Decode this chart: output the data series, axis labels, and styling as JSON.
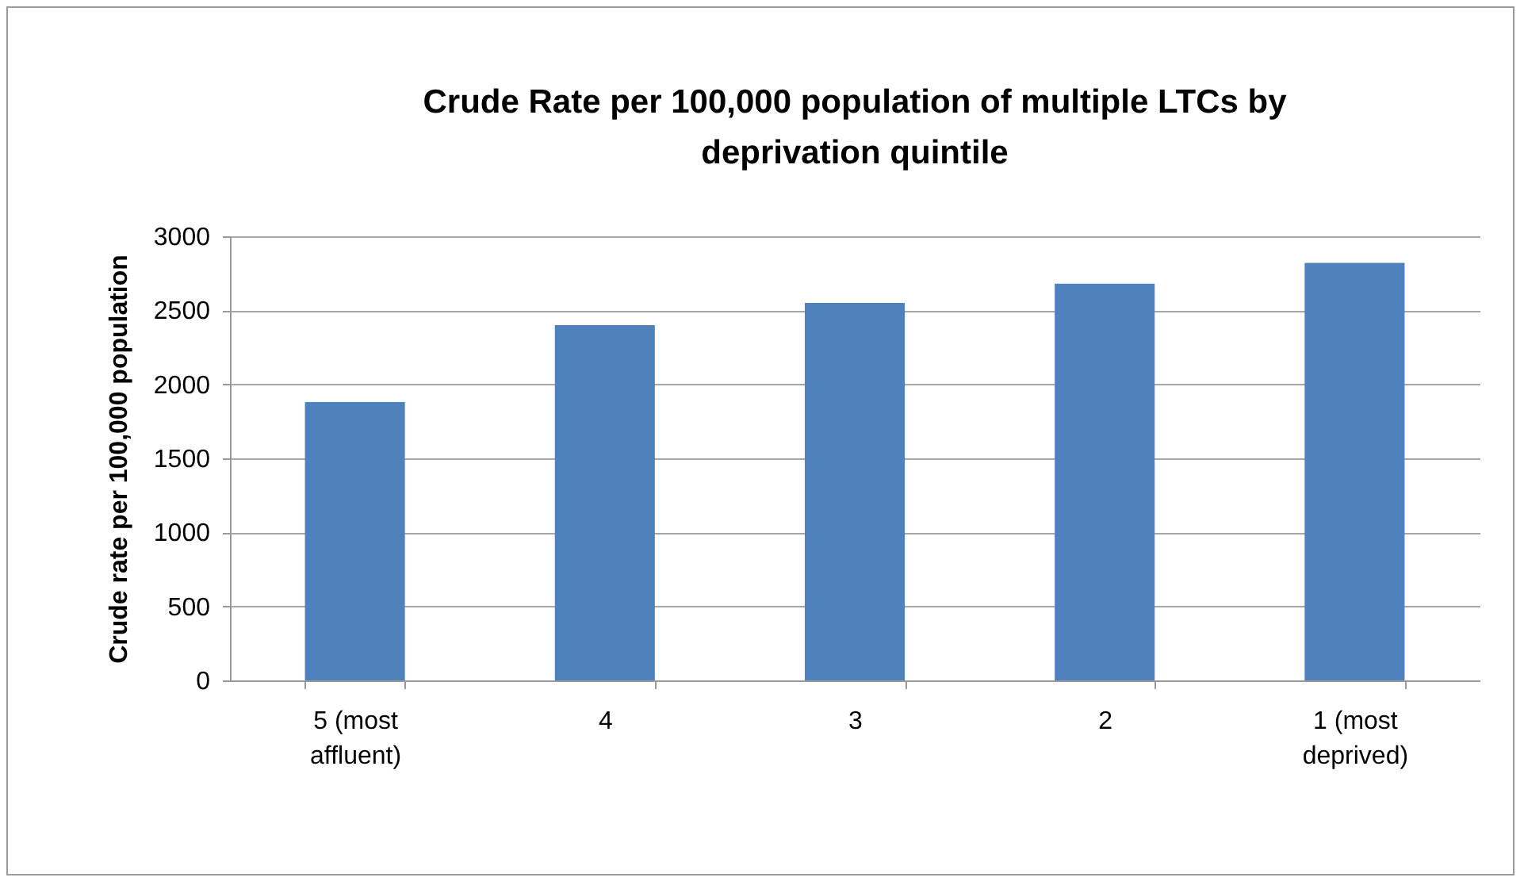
{
  "chart_data": {
    "type": "bar",
    "title": "Crude Rate per 100,000 population of multiple LTCs by deprivation quintile",
    "ylabel": "Crude rate per 100,000 population",
    "categories": [
      "5 (most affluent)",
      "4",
      "3",
      "2",
      "1 (most deprived)"
    ],
    "values": [
      1880,
      2400,
      2550,
      2680,
      2820
    ],
    "color": "#4f81bd",
    "ylim": [
      0,
      3000
    ],
    "yticks": [
      0,
      500,
      1000,
      1500,
      2000,
      2500,
      3000
    ],
    "grid": "y"
  }
}
